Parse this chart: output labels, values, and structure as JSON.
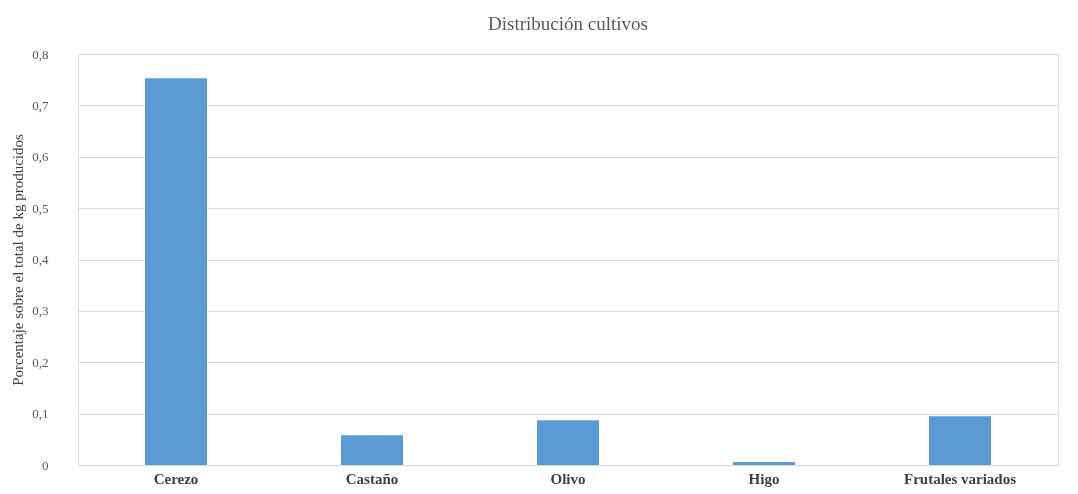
{
  "chart_data": {
    "type": "bar",
    "title": "Distribución  cultivos",
    "ylabel": "Porcentaje sobre el total de kg producidos",
    "categories": [
      "Cerezo",
      "Castaño",
      "Olivo",
      "Higo",
      "Frutales variados"
    ],
    "values": [
      0.753,
      0.058,
      0.087,
      0.006,
      0.095
    ],
    "color": "#5b9bd5",
    "ylim": [
      0,
      0.8
    ],
    "yticks": [
      0,
      {
        "value": 0.1,
        "label": "0,1"
      },
      {
        "value": 0.2,
        "label": "0,2"
      },
      {
        "value": 0.3,
        "label": "0,3"
      },
      {
        "value": 0.4,
        "label": "0,4"
      },
      {
        "value": 0.5,
        "label": "0,5"
      },
      {
        "value": 0.6,
        "label": "0,6"
      },
      {
        "value": 0.7,
        "label": "0,7"
      },
      {
        "value": 0.8,
        "label": "0,8"
      }
    ],
    "grid": "y"
  }
}
